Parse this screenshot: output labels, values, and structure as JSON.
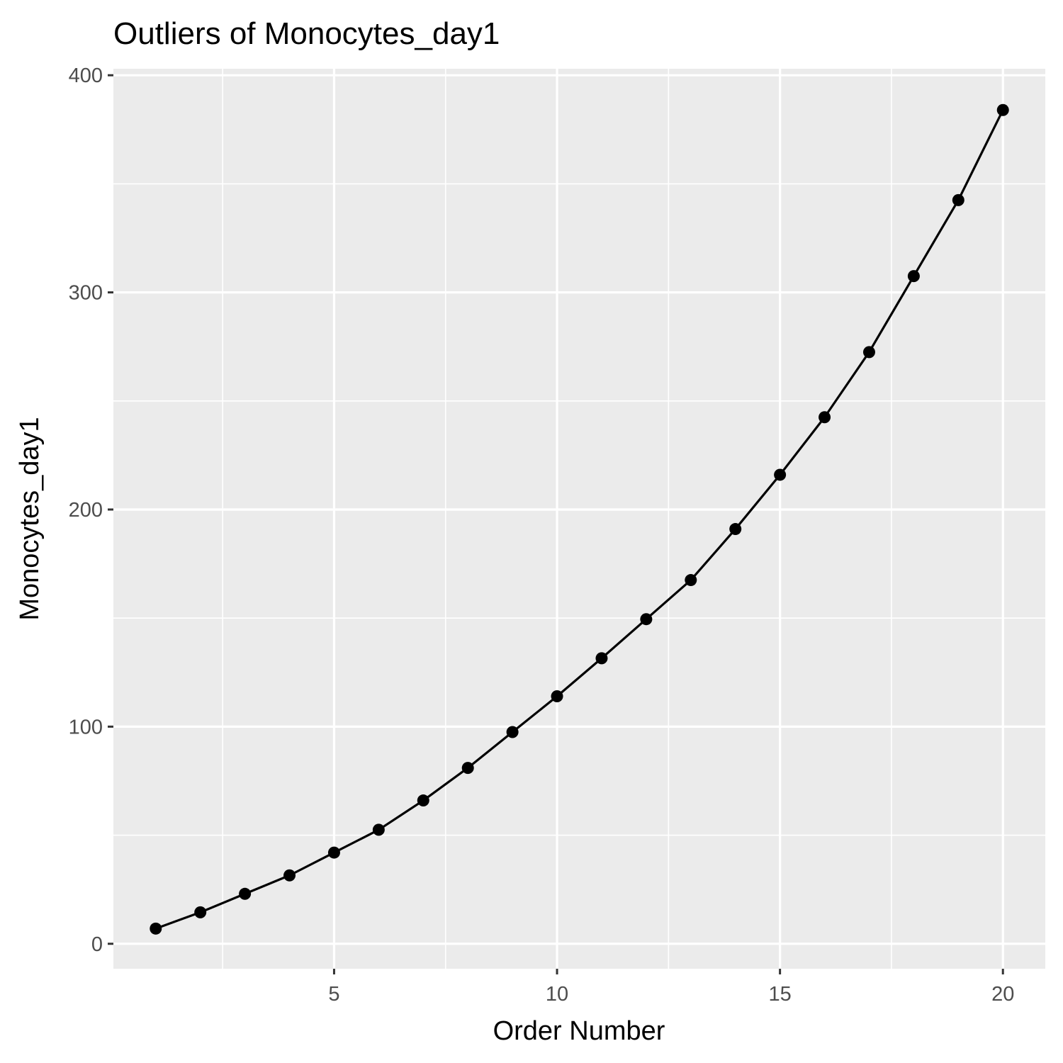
{
  "chart_data": {
    "type": "line",
    "title": "Outliers of Monocytes_day1",
    "xlabel": "Order Number",
    "ylabel": "Monocytes_day1",
    "xlim": [
      0.05,
      20.95
    ],
    "ylim": [
      -11.5,
      403
    ],
    "x_ticks": [
      5,
      10,
      15,
      20
    ],
    "x_tick_labels": [
      "5",
      "10",
      "15",
      "20"
    ],
    "x_minor_ticks": [
      2.5,
      7.5,
      12.5,
      17.5
    ],
    "y_ticks": [
      0,
      100,
      200,
      300,
      400
    ],
    "y_tick_labels": [
      "0",
      "100",
      "200",
      "300",
      "400"
    ],
    "y_minor_ticks": [
      50,
      150,
      250,
      350
    ],
    "grid": true,
    "legend": "none",
    "series": [
      {
        "x": [
          1,
          2,
          3,
          4,
          5,
          6,
          7,
          8,
          9,
          10,
          11,
          12,
          13,
          14,
          15,
          16,
          17,
          18,
          19,
          20
        ],
        "values": [
          7,
          14.5,
          23,
          31.5,
          42,
          52.5,
          66,
          81,
          97.5,
          114,
          131.5,
          149.5,
          167.5,
          191,
          216,
          242.5,
          272.5,
          307.5,
          342.5,
          384
        ],
        "color": "#000000"
      }
    ],
    "colors": {
      "panel_background": "#ebebeb",
      "grid_line": "#ffffff",
      "tick_label": "#4d4d4d",
      "axis_tick": "#333333",
      "series": "#000000"
    }
  }
}
